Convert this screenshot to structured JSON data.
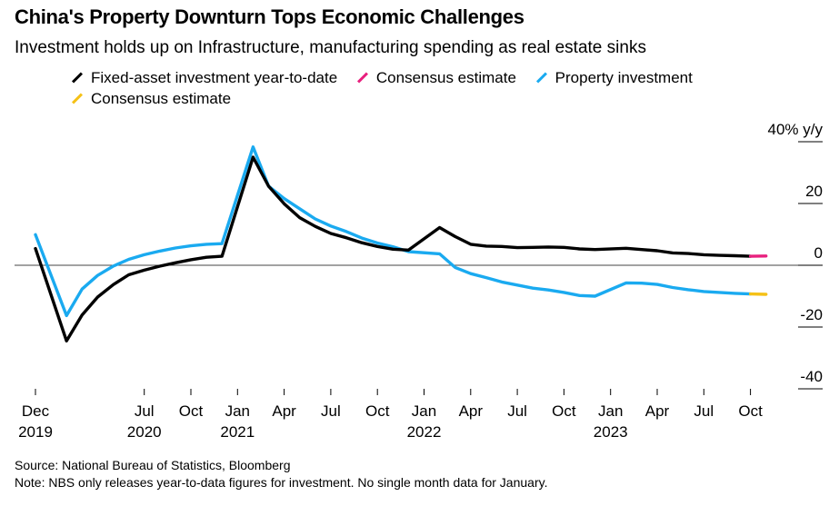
{
  "header": {
    "title": "China's Property Downturn Tops Economic Challenges",
    "subtitle": "Investment holds up on Infrastructure, manufacturing spending as real estate sinks"
  },
  "legend": [
    {
      "label": "Fixed-asset investment year-to-date",
      "color": "#000000"
    },
    {
      "label": "Consensus estimate",
      "color": "#e8207e"
    },
    {
      "label": "Property investment",
      "color": "#1aaaf0"
    },
    {
      "label": "Consensus estimate",
      "color": "#f5c116"
    }
  ],
  "footer": {
    "source": "Source: National Bureau of Statistics, Bloomberg",
    "note": "Note: NBS only releases year-to-data figures for investment. No single month data for January."
  },
  "chart_data": {
    "type": "line",
    "ylim": [
      -40,
      40
    ],
    "y_unit": "y/y",
    "y_ticks": [
      {
        "value": 40,
        "label": "40% y/y"
      },
      {
        "value": 20,
        "label": "20"
      },
      {
        "value": 0,
        "label": "0"
      },
      {
        "value": -20,
        "label": "-20"
      },
      {
        "value": -40,
        "label": "-40"
      }
    ],
    "x_ticks": [
      {
        "date": "2019-12",
        "label": "Dec",
        "year": "2019"
      },
      {
        "date": "2020-07",
        "label": "Jul",
        "year": "2020"
      },
      {
        "date": "2020-10",
        "label": "Oct",
        "year": ""
      },
      {
        "date": "2021-01",
        "label": "Jan",
        "year": "2021"
      },
      {
        "date": "2021-04",
        "label": "Apr",
        "year": ""
      },
      {
        "date": "2021-07",
        "label": "Jul",
        "year": ""
      },
      {
        "date": "2021-10",
        "label": "Oct",
        "year": ""
      },
      {
        "date": "2022-01",
        "label": "Jan",
        "year": "2022"
      },
      {
        "date": "2022-04",
        "label": "Apr",
        "year": ""
      },
      {
        "date": "2022-07",
        "label": "Jul",
        "year": ""
      },
      {
        "date": "2022-10",
        "label": "Oct",
        "year": ""
      },
      {
        "date": "2023-01",
        "label": "Jan",
        "year": "2023"
      },
      {
        "date": "2023-04",
        "label": "Apr",
        "year": ""
      },
      {
        "date": "2023-07",
        "label": "Jul",
        "year": ""
      },
      {
        "date": "2023-10",
        "label": "Oct",
        "year": ""
      }
    ],
    "series": [
      {
        "name": "Fixed-asset investment year-to-date",
        "color": "#000000",
        "points": [
          [
            "2019-12",
            5.4
          ],
          [
            "2020-02",
            -24.5
          ],
          [
            "2020-03",
            -16.1
          ],
          [
            "2020-04",
            -10.3
          ],
          [
            "2020-05",
            -6.3
          ],
          [
            "2020-06",
            -3.1
          ],
          [
            "2020-07",
            -1.6
          ],
          [
            "2020-08",
            -0.3
          ],
          [
            "2020-09",
            0.8
          ],
          [
            "2020-10",
            1.8
          ],
          [
            "2020-11",
            2.6
          ],
          [
            "2020-12",
            2.9
          ],
          [
            "2021-02",
            35.0
          ],
          [
            "2021-03",
            25.6
          ],
          [
            "2021-04",
            19.9
          ],
          [
            "2021-05",
            15.4
          ],
          [
            "2021-06",
            12.6
          ],
          [
            "2021-07",
            10.3
          ],
          [
            "2021-08",
            8.9
          ],
          [
            "2021-09",
            7.3
          ],
          [
            "2021-10",
            6.1
          ],
          [
            "2021-11",
            5.2
          ],
          [
            "2021-12",
            4.9
          ],
          [
            "2022-02",
            12.2
          ],
          [
            "2022-03",
            9.3
          ],
          [
            "2022-04",
            6.8
          ],
          [
            "2022-05",
            6.2
          ],
          [
            "2022-06",
            6.1
          ],
          [
            "2022-07",
            5.7
          ],
          [
            "2022-08",
            5.8
          ],
          [
            "2022-09",
            5.9
          ],
          [
            "2022-10",
            5.8
          ],
          [
            "2022-11",
            5.3
          ],
          [
            "2022-12",
            5.1
          ],
          [
            "2023-02",
            5.5
          ],
          [
            "2023-03",
            5.1
          ],
          [
            "2023-04",
            4.7
          ],
          [
            "2023-05",
            4.0
          ],
          [
            "2023-06",
            3.8
          ],
          [
            "2023-07",
            3.4
          ],
          [
            "2023-08",
            3.2
          ],
          [
            "2023-09",
            3.1
          ],
          [
            "2023-10",
            2.9
          ]
        ]
      },
      {
        "name": "Consensus estimate",
        "color": "#e8207e",
        "points": [
          [
            "2023-10",
            2.9
          ],
          [
            "2023-11",
            3.0
          ]
        ]
      },
      {
        "name": "Property investment",
        "color": "#1aaaf0",
        "points": [
          [
            "2019-12",
            9.9
          ],
          [
            "2020-02",
            -16.3
          ],
          [
            "2020-03",
            -7.7
          ],
          [
            "2020-04",
            -3.3
          ],
          [
            "2020-05",
            -0.3
          ],
          [
            "2020-06",
            1.9
          ],
          [
            "2020-07",
            3.4
          ],
          [
            "2020-08",
            4.6
          ],
          [
            "2020-09",
            5.6
          ],
          [
            "2020-10",
            6.3
          ],
          [
            "2020-11",
            6.8
          ],
          [
            "2020-12",
            7.0
          ],
          [
            "2021-02",
            38.3
          ],
          [
            "2021-03",
            25.6
          ],
          [
            "2021-04",
            21.6
          ],
          [
            "2021-05",
            18.3
          ],
          [
            "2021-06",
            15.0
          ],
          [
            "2021-07",
            12.7
          ],
          [
            "2021-08",
            10.9
          ],
          [
            "2021-09",
            8.8
          ],
          [
            "2021-10",
            7.2
          ],
          [
            "2021-11",
            6.0
          ],
          [
            "2021-12",
            4.4
          ],
          [
            "2022-02",
            3.7
          ],
          [
            "2022-03",
            -0.7
          ],
          [
            "2022-04",
            -2.7
          ],
          [
            "2022-05",
            -4.0
          ],
          [
            "2022-06",
            -5.4
          ],
          [
            "2022-07",
            -6.4
          ],
          [
            "2022-08",
            -7.4
          ],
          [
            "2022-09",
            -8.0
          ],
          [
            "2022-10",
            -8.8
          ],
          [
            "2022-11",
            -9.8
          ],
          [
            "2022-12",
            -10.0
          ],
          [
            "2023-02",
            -5.7
          ],
          [
            "2023-03",
            -5.8
          ],
          [
            "2023-04",
            -6.2
          ],
          [
            "2023-05",
            -7.2
          ],
          [
            "2023-06",
            -7.9
          ],
          [
            "2023-07",
            -8.5
          ],
          [
            "2023-08",
            -8.8
          ],
          [
            "2023-09",
            -9.1
          ],
          [
            "2023-10",
            -9.3
          ]
        ]
      },
      {
        "name": "Consensus estimate",
        "color": "#f5c116",
        "points": [
          [
            "2023-10",
            -9.3
          ],
          [
            "2023-11",
            -9.4
          ]
        ]
      }
    ]
  }
}
